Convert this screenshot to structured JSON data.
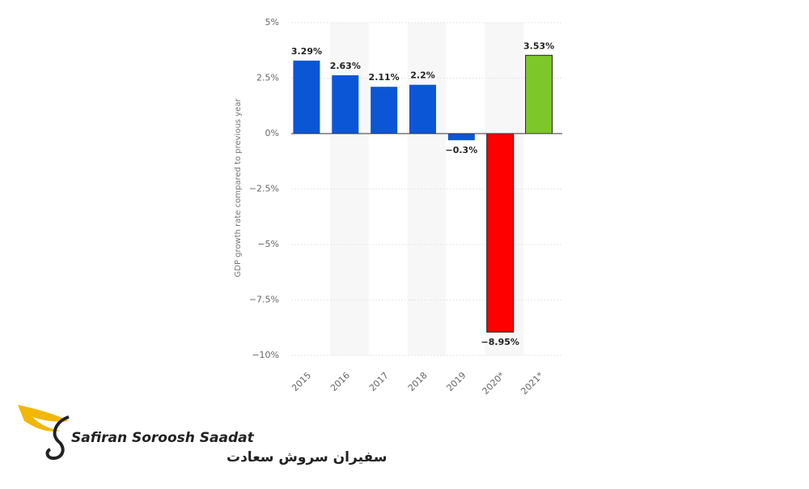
{
  "chart_data": {
    "type": "bar",
    "y_label": "GDP growth rate compared to previous year",
    "categories": [
      "2015",
      "2016",
      "2017",
      "2018",
      "2019",
      "2020*",
      "2021*"
    ],
    "values": [
      3.29,
      2.63,
      2.11,
      2.2,
      -0.3,
      -8.95,
      3.53
    ],
    "value_labels": [
      "3.29%",
      "2.63%",
      "2.11%",
      "2.2%",
      "−0.3%",
      "−8.95%",
      "3.53%"
    ],
    "colors": [
      "#0a56d6",
      "#0a56d6",
      "#0a56d6",
      "#0a56d6",
      "#0a56d6",
      "#ff0000",
      "#7dc72a"
    ],
    "ylim": [
      -10,
      5
    ],
    "yticks": [
      {
        "value": 5,
        "label": "5%"
      },
      {
        "value": 2.5,
        "label": "2.5%"
      },
      {
        "value": 0,
        "label": "0%"
      },
      {
        "value": -2.5,
        "label": "−2.5%"
      },
      {
        "value": -5,
        "label": "−5%"
      },
      {
        "value": -7.5,
        "label": "−7.5%"
      },
      {
        "value": -10,
        "label": "−10%"
      }
    ]
  },
  "logo": {
    "name": "Safiran Soroosh Saadat",
    "name_fa": "سفیران سروش سعادت"
  }
}
